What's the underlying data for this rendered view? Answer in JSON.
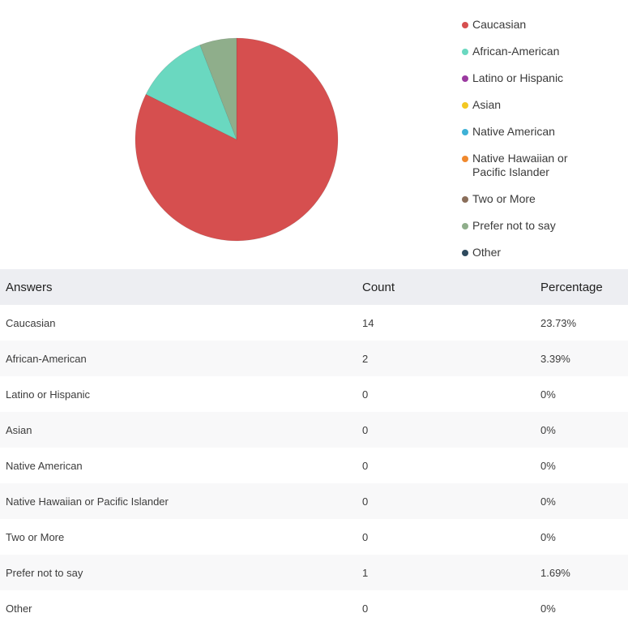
{
  "chart_data": {
    "type": "pie",
    "title": "",
    "categories": [
      "Caucasian",
      "African-American",
      "Latino or Hispanic",
      "Asian",
      "Native American",
      "Native Hawaiian or Pacific Islander",
      "Two or More",
      "Prefer not to say",
      "Other"
    ],
    "values": [
      14,
      2,
      0,
      0,
      0,
      0,
      0,
      1,
      0
    ],
    "colors": [
      "#d64f4f",
      "#6ad8c0",
      "#9b3aa0",
      "#f3c823",
      "#3eb1d6",
      "#f0892e",
      "#8a6e5a",
      "#8fae8b",
      "#2e4a5e"
    ],
    "legend_position": "right",
    "legend": [
      {
        "label": "Caucasian",
        "color": "#d64f4f"
      },
      {
        "label": "African-American",
        "color": "#6ad8c0"
      },
      {
        "label": "Latino or Hispanic",
        "color": "#9b3aa0"
      },
      {
        "label": "Asian",
        "color": "#f3c823"
      },
      {
        "label": "Native American",
        "color": "#3eb1d6"
      },
      {
        "label": "Native Hawaiian or Pacific Islander",
        "color": "#f0892e"
      },
      {
        "label": "Two or More",
        "color": "#8a6e5a"
      },
      {
        "label": "Prefer not to say",
        "color": "#8fae8b"
      },
      {
        "label": "Other",
        "color": "#2e4a5e"
      }
    ]
  },
  "table": {
    "headers": {
      "answers": "Answers",
      "count": "Count",
      "percentage": "Percentage"
    },
    "rows": [
      {
        "answer": "Caucasian",
        "count": "14",
        "percentage": "23.73%"
      },
      {
        "answer": "African-American",
        "count": "2",
        "percentage": "3.39%"
      },
      {
        "answer": "Latino or Hispanic",
        "count": "0",
        "percentage": "0%"
      },
      {
        "answer": "Asian",
        "count": "0",
        "percentage": "0%"
      },
      {
        "answer": "Native American",
        "count": "0",
        "percentage": "0%"
      },
      {
        "answer": "Native Hawaiian or Pacific Islander",
        "count": "0",
        "percentage": "0%"
      },
      {
        "answer": "Two or More",
        "count": "0",
        "percentage": "0%"
      },
      {
        "answer": "Prefer not to say",
        "count": "1",
        "percentage": "1.69%"
      },
      {
        "answer": "Other",
        "count": "0",
        "percentage": "0%"
      }
    ]
  }
}
